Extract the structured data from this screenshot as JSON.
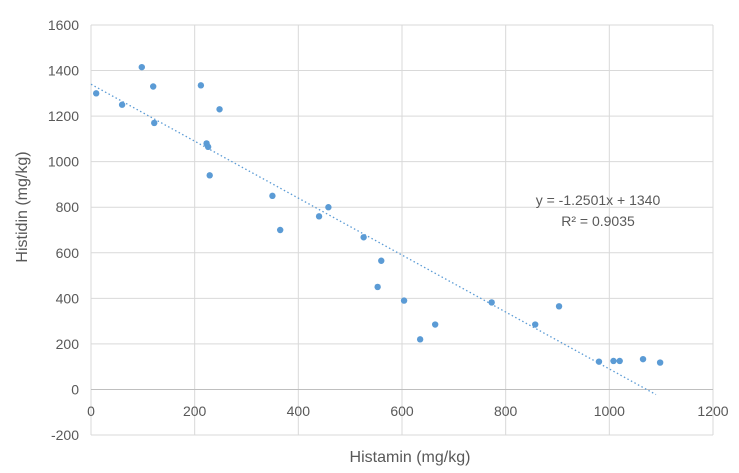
{
  "chart_data": {
    "type": "scatter",
    "title": "",
    "xlabel": "Histamin (mg/kg)",
    "ylabel": "Histidin (mg/kg)",
    "xlim": [
      0,
      1200
    ],
    "ylim": [
      -200,
      1600
    ],
    "x_ticks": [
      0,
      200,
      400,
      600,
      800,
      1000,
      1200
    ],
    "y_ticks": [
      -200,
      0,
      200,
      400,
      600,
      800,
      1000,
      1200,
      1400,
      1600
    ],
    "x_tick_labels": [
      "0",
      "200",
      "400",
      "600",
      "800",
      "1000",
      "1200"
    ],
    "y_tick_labels": [
      "-200",
      "0",
      "200",
      "400",
      "600",
      "800",
      "1000",
      "1200",
      "1400",
      "1600"
    ],
    "grid": true,
    "legend": "none",
    "series": [
      {
        "color": "#5b9bd5",
        "points": [
          {
            "x": 10,
            "y": 1300
          },
          {
            "x": 60,
            "y": 1250
          },
          {
            "x": 98,
            "y": 1415
          },
          {
            "x": 120,
            "y": 1330
          },
          {
            "x": 122,
            "y": 1170
          },
          {
            "x": 212,
            "y": 1335
          },
          {
            "x": 223,
            "y": 1080
          },
          {
            "x": 226,
            "y": 1065
          },
          {
            "x": 229,
            "y": 940
          },
          {
            "x": 248,
            "y": 1230
          },
          {
            "x": 350,
            "y": 850
          },
          {
            "x": 365,
            "y": 700
          },
          {
            "x": 440,
            "y": 760
          },
          {
            "x": 458,
            "y": 800
          },
          {
            "x": 526,
            "y": 668
          },
          {
            "x": 553,
            "y": 450
          },
          {
            "x": 560,
            "y": 565
          },
          {
            "x": 604,
            "y": 390
          },
          {
            "x": 635,
            "y": 220
          },
          {
            "x": 664,
            "y": 285
          },
          {
            "x": 773,
            "y": 382
          },
          {
            "x": 857,
            "y": 285
          },
          {
            "x": 903,
            "y": 365
          },
          {
            "x": 980,
            "y": 122
          },
          {
            "x": 1008,
            "y": 125
          },
          {
            "x": 1020,
            "y": 125
          },
          {
            "x": 1065,
            "y": 133
          },
          {
            "x": 1098,
            "y": 118
          }
        ]
      }
    ],
    "trendline": {
      "type": "linear",
      "slope": -1.2501,
      "intercept": 1340,
      "x_range": [
        0,
        1090
      ],
      "color": "#5b9bd5",
      "style": "dotted"
    },
    "annotations": {
      "equation": "y = -1.2501x + 1340",
      "r_squared": "R² = 0.9035"
    },
    "colors": {
      "axis_text": "#595959",
      "grid": "#d9d9d9",
      "marker": "#5b9bd5"
    }
  }
}
